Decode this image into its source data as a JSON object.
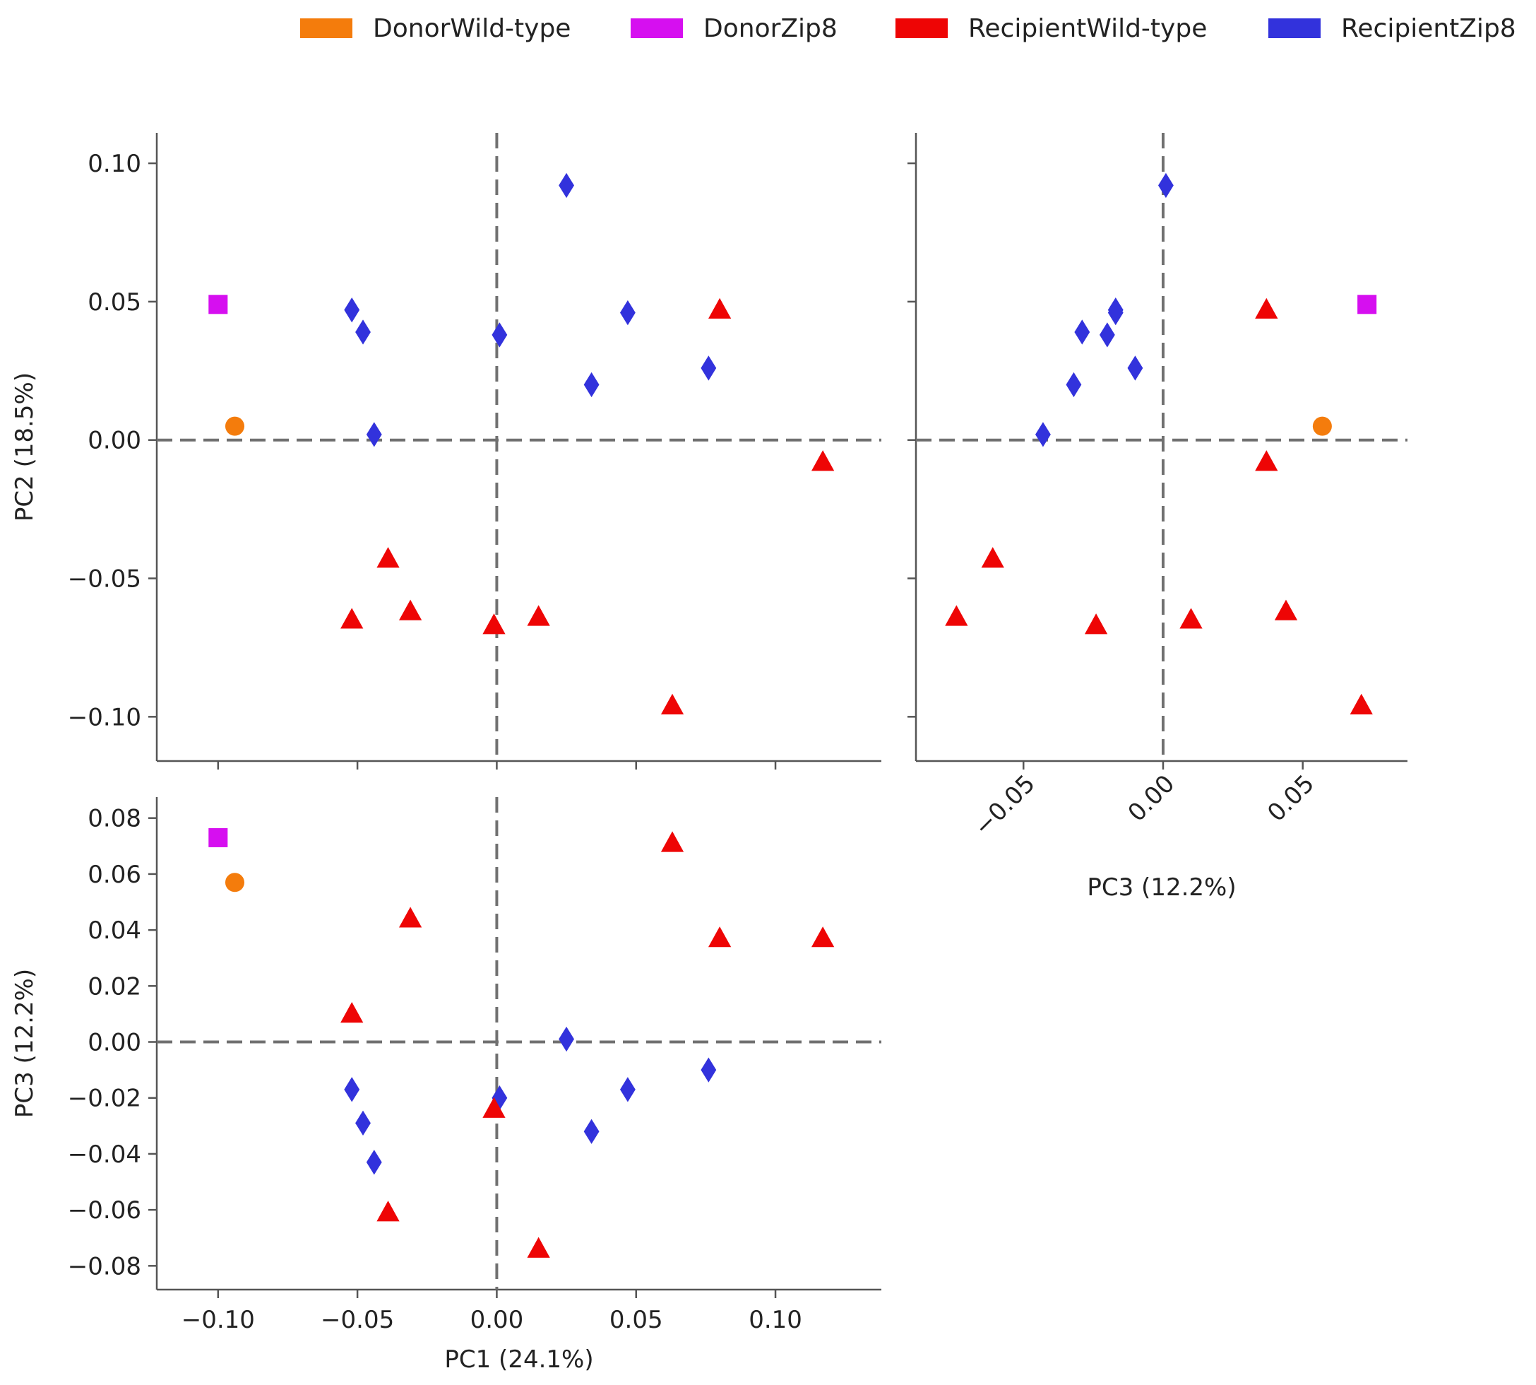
{
  "chart_data": {
    "type": "scatter",
    "kind": "pca-pairplot",
    "legend": [
      {
        "name": "DonorWild-type",
        "color": "#f47c0c",
        "marker": "circle"
      },
      {
        "name": "DonorZip8",
        "color": "#d60ff0",
        "marker": "square"
      },
      {
        "name": "RecipientWild-type",
        "color": "#ee0505",
        "marker": "triangle"
      },
      {
        "name": "RecipientZip8",
        "color": "#3232dc",
        "marker": "diamond"
      }
    ],
    "legend_position": "top",
    "axes_labels": {
      "PC1": "PC1 (24.1%)",
      "PC2": "PC2 (18.5%)",
      "PC3": "PC3 (12.2%)"
    },
    "axis_ranges": {
      "PC1": [
        -0.122,
        0.138
      ],
      "PC2": [
        -0.116,
        0.111
      ],
      "PC3": [
        -0.0885,
        0.0875
      ]
    },
    "ticks": {
      "PC1": [
        {
          "v": -0.1,
          "label": "−0.10"
        },
        {
          "v": -0.05,
          "label": "−0.05"
        },
        {
          "v": 0.0,
          "label": "0.00"
        },
        {
          "v": 0.05,
          "label": "0.05"
        },
        {
          "v": 0.1,
          "label": "0.10"
        }
      ],
      "PC2": [
        {
          "v": 0.1,
          "label": "0.10"
        },
        {
          "v": 0.05,
          "label": "0.05"
        },
        {
          "v": 0.0,
          "label": "0.00"
        },
        {
          "v": -0.05,
          "label": "−0.05"
        },
        {
          "v": -0.1,
          "label": "−0.10"
        }
      ],
      "PC3_vertical": [
        {
          "v": 0.08,
          "label": "0.08"
        },
        {
          "v": 0.06,
          "label": "0.06"
        },
        {
          "v": 0.04,
          "label": "0.04"
        },
        {
          "v": 0.02,
          "label": "0.02"
        },
        {
          "v": 0.0,
          "label": "0.00"
        },
        {
          "v": -0.02,
          "label": "−0.02"
        },
        {
          "v": -0.04,
          "label": "−0.04"
        },
        {
          "v": -0.06,
          "label": "−0.06"
        },
        {
          "v": -0.08,
          "label": "−0.08"
        }
      ],
      "PC3_horizontal": [
        {
          "v": -0.05,
          "label": "−0.05"
        },
        {
          "v": 0.0,
          "label": "0.00"
        },
        {
          "v": 0.05,
          "label": "0.05"
        }
      ]
    },
    "panels": [
      {
        "id": "pc1-pc2",
        "x": "PC1",
        "y": "PC2",
        "x_ticks": "PC1",
        "y_ticks": "PC2",
        "show_xlabel": false,
        "show_ylabel": true,
        "show_xticklabels": false,
        "show_yticklabels": true,
        "rotate_xticks": false
      },
      {
        "id": "pc3-pc2",
        "x": "PC3",
        "y": "PC2",
        "x_ticks": "PC3_horizontal",
        "y_ticks": "PC2",
        "show_xlabel": true,
        "show_ylabel": false,
        "show_xticklabels": true,
        "show_yticklabels": false,
        "rotate_xticks": true
      },
      {
        "id": "pc1-pc3",
        "x": "PC1",
        "y": "PC3",
        "x_ticks": "PC1",
        "y_ticks": "PC3_vertical",
        "show_xlabel": true,
        "show_ylabel": true,
        "show_xticklabels": true,
        "show_yticklabels": true,
        "rotate_xticks": false
      }
    ],
    "points": [
      {
        "group": "DonorWild-type",
        "PC1": -0.094,
        "PC2": 0.005,
        "PC3": 0.057
      },
      {
        "group": "DonorZip8",
        "PC1": -0.1,
        "PC2": 0.049,
        "PC3": 0.073
      },
      {
        "group": "RecipientZip8",
        "PC1": 0.025,
        "PC2": 0.092,
        "PC3": 0.001
      },
      {
        "group": "RecipientZip8",
        "PC1": -0.052,
        "PC2": 0.047,
        "PC3": -0.017
      },
      {
        "group": "RecipientZip8",
        "PC1": -0.048,
        "PC2": 0.039,
        "PC3": -0.029
      },
      {
        "group": "RecipientZip8",
        "PC1": -0.044,
        "PC2": 0.002,
        "PC3": -0.043
      },
      {
        "group": "RecipientZip8",
        "PC1": 0.001,
        "PC2": 0.038,
        "PC3": -0.02
      },
      {
        "group": "RecipientZip8",
        "PC1": 0.047,
        "PC2": 0.046,
        "PC3": -0.017
      },
      {
        "group": "RecipientZip8",
        "PC1": 0.034,
        "PC2": 0.02,
        "PC3": -0.032
      },
      {
        "group": "RecipientZip8",
        "PC1": 0.076,
        "PC2": 0.026,
        "PC3": -0.01
      },
      {
        "group": "RecipientWild-type",
        "PC1": 0.08,
        "PC2": 0.047,
        "PC3": 0.037
      },
      {
        "group": "RecipientWild-type",
        "PC1": 0.117,
        "PC2": -0.008,
        "PC3": 0.037
      },
      {
        "group": "RecipientWild-type",
        "PC1": -0.039,
        "PC2": -0.043,
        "PC3": -0.061
      },
      {
        "group": "RecipientWild-type",
        "PC1": -0.052,
        "PC2": -0.065,
        "PC3": 0.01
      },
      {
        "group": "RecipientWild-type",
        "PC1": -0.031,
        "PC2": -0.062,
        "PC3": 0.044
      },
      {
        "group": "RecipientWild-type",
        "PC1": -0.001,
        "PC2": -0.067,
        "PC3": -0.024
      },
      {
        "group": "RecipientWild-type",
        "PC1": 0.015,
        "PC2": -0.064,
        "PC3": -0.074
      },
      {
        "group": "RecipientWild-type",
        "PC1": 0.063,
        "PC2": -0.096,
        "PC3": 0.071
      }
    ]
  }
}
